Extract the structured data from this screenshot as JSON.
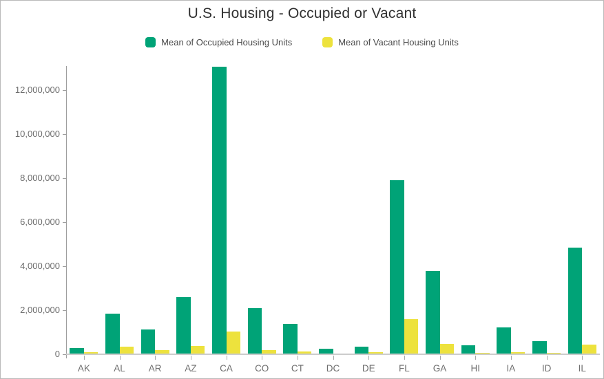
{
  "title": "U.S. Housing - Occupied or Vacant",
  "legend": {
    "items": [
      {
        "label": "Mean of Occupied Housing Units",
        "color": "#00a377"
      },
      {
        "label": "Mean of Vacant Housing Units",
        "color": "#ede23d"
      }
    ]
  },
  "chart_data": {
    "type": "bar",
    "title": "U.S. Housing - Occupied or Vacant",
    "categories": [
      "AK",
      "AL",
      "AR",
      "AZ",
      "CA",
      "CO",
      "CT",
      "DC",
      "DE",
      "FL",
      "GA",
      "HI",
      "IA",
      "ID",
      "IL"
    ],
    "series": [
      {
        "name": "Mean of Occupied Housing Units",
        "color": "#00a377",
        "values": [
          280000,
          1850000,
          1120000,
          2580000,
          13050000,
          2090000,
          1360000,
          260000,
          350000,
          7900000,
          3790000,
          420000,
          1230000,
          600000,
          4840000
        ]
      },
      {
        "name": "Mean of Vacant Housing Units",
        "color": "#ede23d",
        "values": [
          80000,
          350000,
          180000,
          370000,
          1040000,
          200000,
          120000,
          40000,
          80000,
          1590000,
          460000,
          50000,
          100000,
          50000,
          450000
        ]
      }
    ],
    "xlabel": "",
    "ylabel": "",
    "ylim": [
      0,
      13400000
    ],
    "y_ticks": [
      0,
      2000000,
      4000000,
      6000000,
      8000000,
      10000000,
      12000000
    ],
    "y_tick_labels": [
      "0",
      "2,000,000",
      "4,000,000",
      "6,000,000",
      "8,000,000",
      "10,000,000",
      "12,000,000"
    ],
    "grid": false,
    "legend_position": "top"
  }
}
